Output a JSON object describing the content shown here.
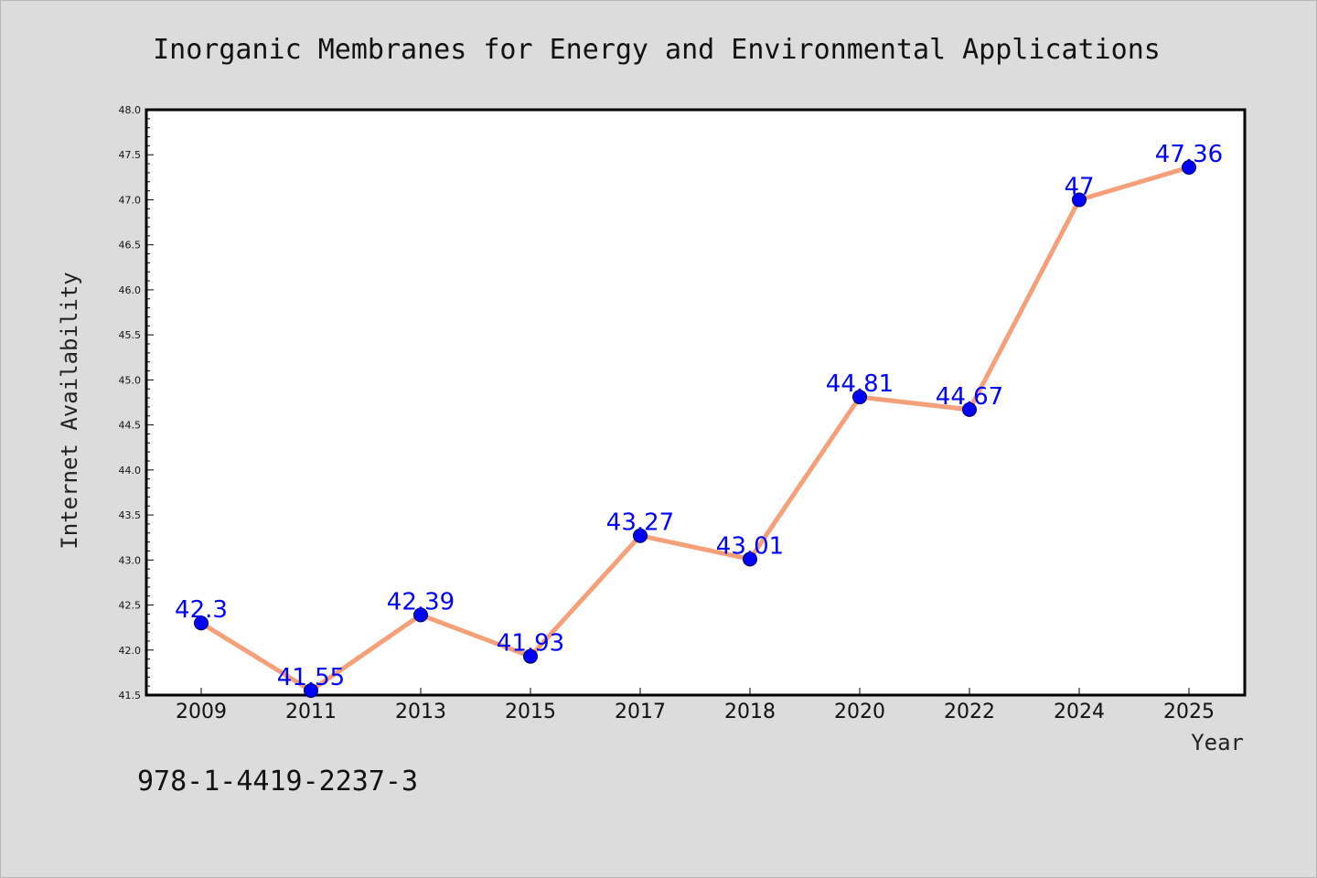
{
  "chart_data": {
    "type": "line",
    "title": "Inorganic Membranes for Energy and Environmental Applications",
    "xlabel": "Year",
    "ylabel": "Internet Availability",
    "categories": [
      "2009",
      "2011",
      "2013",
      "2015",
      "2017",
      "2018",
      "2020",
      "2022",
      "2024",
      "2025"
    ],
    "values": [
      42.3,
      41.55,
      42.39,
      41.93,
      43.27,
      43.01,
      44.81,
      44.67,
      47.0,
      47.36
    ],
    "data_labels": [
      "42.3",
      "41.55",
      "42.39",
      "41.93",
      "43.27",
      "43.01",
      "44.81",
      "44.67",
      "47",
      "47.36"
    ],
    "ylim": [
      41.5,
      48.0
    ],
    "yticks": [
      "41.5",
      "42.0",
      "42.5",
      "43.0",
      "43.5",
      "44.0",
      "44.5",
      "45.0",
      "45.5",
      "46.0",
      "46.5",
      "47.0",
      "47.5",
      "48.0"
    ],
    "grid": false,
    "line_color": "#f5a07a",
    "marker_color": "#0000ff",
    "label_color": "#0000ff",
    "plot_background": "#ffffff",
    "figure_background": "#dcdcdc"
  },
  "footnote": "978-1-4419-2237-3"
}
